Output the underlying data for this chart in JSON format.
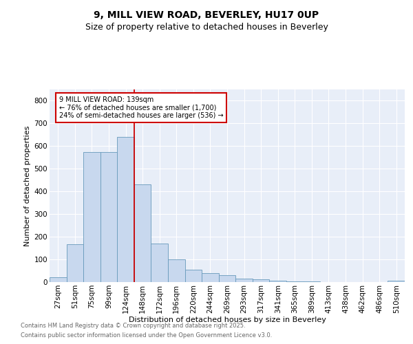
{
  "title1": "9, MILL VIEW ROAD, BEVERLEY, HU17 0UP",
  "title2": "Size of property relative to detached houses in Beverley",
  "xlabel": "Distribution of detached houses by size in Beverley",
  "ylabel": "Number of detached properties",
  "bar_labels": [
    "27sqm",
    "51sqm",
    "75sqm",
    "99sqm",
    "124sqm",
    "148sqm",
    "172sqm",
    "196sqm",
    "220sqm",
    "244sqm",
    "269sqm",
    "293sqm",
    "317sqm",
    "341sqm",
    "365sqm",
    "389sqm",
    "413sqm",
    "438sqm",
    "462sqm",
    "486sqm",
    "510sqm"
  ],
  "bar_values": [
    20,
    168,
    575,
    575,
    640,
    430,
    170,
    100,
    54,
    40,
    30,
    15,
    12,
    5,
    3,
    2,
    1,
    1,
    0,
    0,
    6
  ],
  "bar_color": "#c8d8ee",
  "bar_edge_color": "#6699bb",
  "vline_color": "#cc0000",
  "annotation_text": "9 MILL VIEW ROAD: 139sqm\n← 76% of detached houses are smaller (1,700)\n24% of semi-detached houses are larger (536) →",
  "annotation_box_color": "#cc0000",
  "ylim": [
    0,
    850
  ],
  "yticks": [
    0,
    100,
    200,
    300,
    400,
    500,
    600,
    700,
    800
  ],
  "background_color": "#e8eef8",
  "footer1": "Contains HM Land Registry data © Crown copyright and database right 2025.",
  "footer2": "Contains public sector information licensed under the Open Government Licence v3.0.",
  "title_fontsize": 10,
  "subtitle_fontsize": 9,
  "axis_fontsize": 8,
  "tick_fontsize": 7.5,
  "footer_fontsize": 6
}
